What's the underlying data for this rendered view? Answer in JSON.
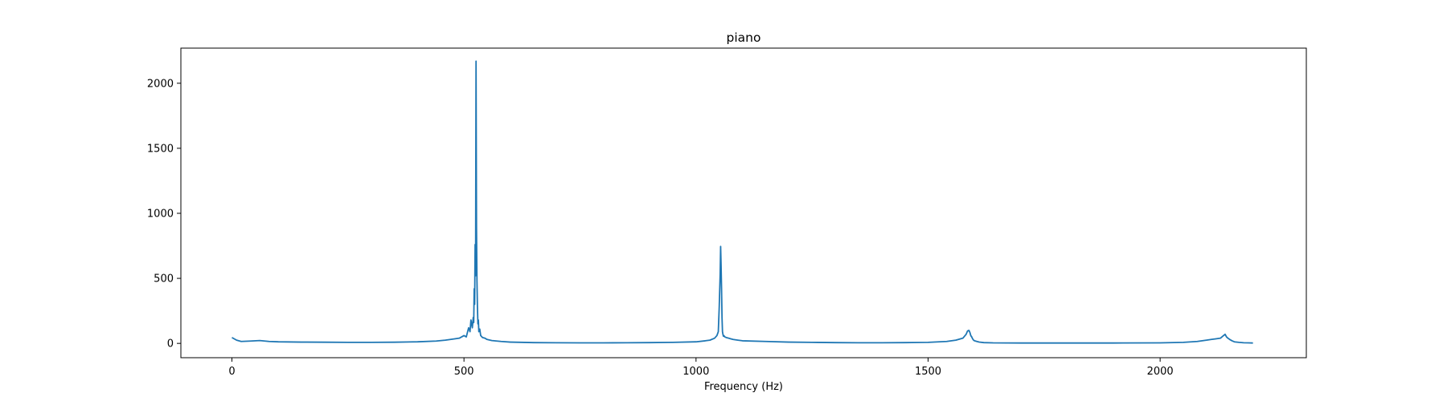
{
  "chart_data": {
    "type": "line",
    "title": "piano",
    "xlabel": "Frequency (Hz)",
    "ylabel": "",
    "xlim": [
      -110,
      2315
    ],
    "ylim": [
      -110,
      2270
    ],
    "xticks": [
      0,
      500,
      1000,
      1500,
      2000
    ],
    "yticks": [
      0,
      500,
      1000,
      1500,
      2000
    ],
    "grid": false,
    "legend": "none",
    "colors": {
      "line": "#1f77b4",
      "axes": "#000000"
    },
    "series": [
      {
        "x": [
          0,
          10,
          20,
          40,
          60,
          80,
          100,
          150,
          200,
          250,
          300,
          350,
          400,
          440,
          460,
          480,
          490,
          500,
          505,
          510,
          513,
          515,
          518,
          520,
          521,
          522,
          523,
          524,
          525,
          526,
          527,
          528,
          529,
          530,
          531,
          532,
          534,
          536,
          540,
          545,
          550,
          560,
          580,
          600,
          650,
          700,
          750,
          800,
          850,
          900,
          950,
          1000,
          1020,
          1030,
          1040,
          1045,
          1048,
          1050,
          1052,
          1053,
          1054,
          1055,
          1056,
          1057,
          1058,
          1059,
          1060,
          1062,
          1065,
          1070,
          1075,
          1080,
          1090,
          1100,
          1150,
          1200,
          1250,
          1300,
          1350,
          1400,
          1450,
          1500,
          1540,
          1560,
          1575,
          1582,
          1585,
          1588,
          1590,
          1592,
          1594,
          1596,
          1598,
          1600,
          1605,
          1610,
          1620,
          1640,
          1700,
          1800,
          1900,
          2000,
          2050,
          2080,
          2100,
          2110,
          2120,
          2130,
          2135,
          2140,
          2143,
          2146,
          2150,
          2155,
          2160,
          2170,
          2180,
          2190,
          2200
        ],
        "y": [
          45,
          25,
          15,
          18,
          22,
          15,
          12,
          10,
          9,
          8,
          8,
          9,
          12,
          18,
          25,
          35,
          40,
          60,
          50,
          120,
          90,
          180,
          120,
          200,
          160,
          420,
          300,
          760,
          520,
          2170,
          900,
          480,
          280,
          150,
          180,
          90,
          110,
          60,
          45,
          40,
          30,
          22,
          15,
          10,
          6,
          5,
          4,
          4,
          5,
          6,
          8,
          12,
          20,
          25,
          40,
          60,
          90,
          280,
          530,
          745,
          600,
          420,
          200,
          90,
          70,
          55,
          60,
          50,
          45,
          40,
          35,
          30,
          25,
          20,
          15,
          10,
          8,
          6,
          5,
          5,
          6,
          8,
          15,
          25,
          40,
          70,
          95,
          100,
          85,
          60,
          50,
          35,
          25,
          20,
          15,
          10,
          6,
          4,
          3,
          3,
          3,
          4,
          8,
          15,
          25,
          30,
          35,
          40,
          55,
          70,
          50,
          40,
          30,
          20,
          12,
          8,
          5,
          4,
          3
        ]
      }
    ]
  }
}
